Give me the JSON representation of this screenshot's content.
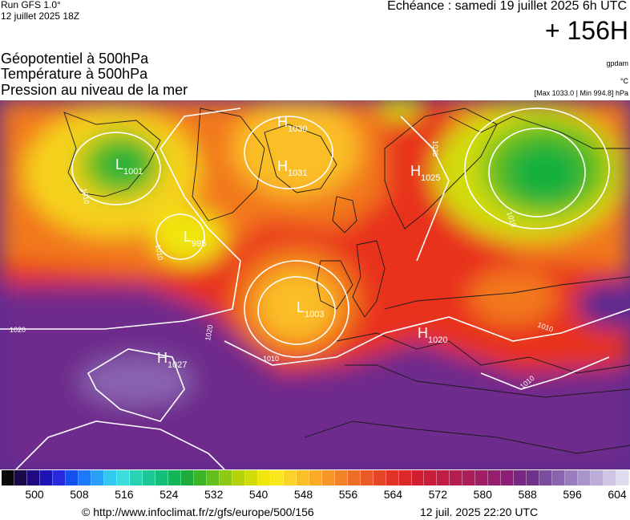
{
  "header": {
    "run": "Run GFS 1.0°",
    "run_date": "12 juillet 2025 18Z",
    "echeance": "Echéance : samedi 19 juillet 2025 6h UTC",
    "lead": "+ 156H"
  },
  "layers": {
    "line1": "Géopotentiel à 500hPa",
    "line2": "Température à 500hPa",
    "line3": "Pression au niveau de la mer",
    "unit1": "gpdam",
    "unit2": "°C",
    "stats": "[Max 1033.0 | Min 994.8] hPa"
  },
  "pressure_centers": [
    {
      "type": "H",
      "value": "1030"
    },
    {
      "type": "H",
      "value": "1031"
    },
    {
      "type": "H",
      "value": "1025"
    },
    {
      "type": "H",
      "value": "1027"
    },
    {
      "type": "H",
      "value": "1020"
    },
    {
      "type": "L",
      "value": "1001"
    },
    {
      "type": "L",
      "value": "995"
    },
    {
      "type": "L",
      "value": "1003"
    }
  ],
  "isobar_labels": [
    "1020",
    "1020",
    "1010",
    "1010",
    "1010",
    "1010",
    "1020",
    "1010",
    "1010"
  ],
  "colors": {
    "purple_low": "#5a2b91",
    "red_mid": "#e8321e",
    "orange": "#f2781e",
    "yellow": "#f5d21e",
    "green": "#18b03c"
  },
  "scale": {
    "ticks": [
      "500",
      "508",
      "516",
      "524",
      "532",
      "540",
      "548",
      "556",
      "564",
      "572",
      "580",
      "588",
      "596",
      "604"
    ],
    "swatches": [
      "#0a0a0a",
      "#1a0a4a",
      "#200a80",
      "#1e14b4",
      "#2828dc",
      "#1450f0",
      "#1e78fa",
      "#28a0fa",
      "#32c8f0",
      "#3cdcdc",
      "#28d2b4",
      "#1ec896",
      "#14be78",
      "#14b45a",
      "#1eaa3c",
      "#3cb428",
      "#64be1e",
      "#8cc814",
      "#b4d20a",
      "#d2dc0a",
      "#f0e60a",
      "#fae61e",
      "#fad228",
      "#fabe28",
      "#faaa28",
      "#f69628",
      "#f28228",
      "#ee6e28",
      "#ea5a28",
      "#e64628",
      "#e23228",
      "#dc2828",
      "#d21e32",
      "#c81e3c",
      "#be1e46",
      "#b41e50",
      "#aa1e5a",
      "#a01e64",
      "#961e6e",
      "#8c1e78",
      "#782882",
      "#6e328c",
      "#7a4ca0",
      "#8a64b0",
      "#9a7cc0",
      "#aa94cc",
      "#bcacd8",
      "#cec4e4",
      "#e0dcf0"
    ]
  },
  "footer": {
    "url": "© http://www.infoclimat.fr/z/gfs/europe/500/156",
    "generated": "12 juil. 2025 22:20 UTC"
  }
}
